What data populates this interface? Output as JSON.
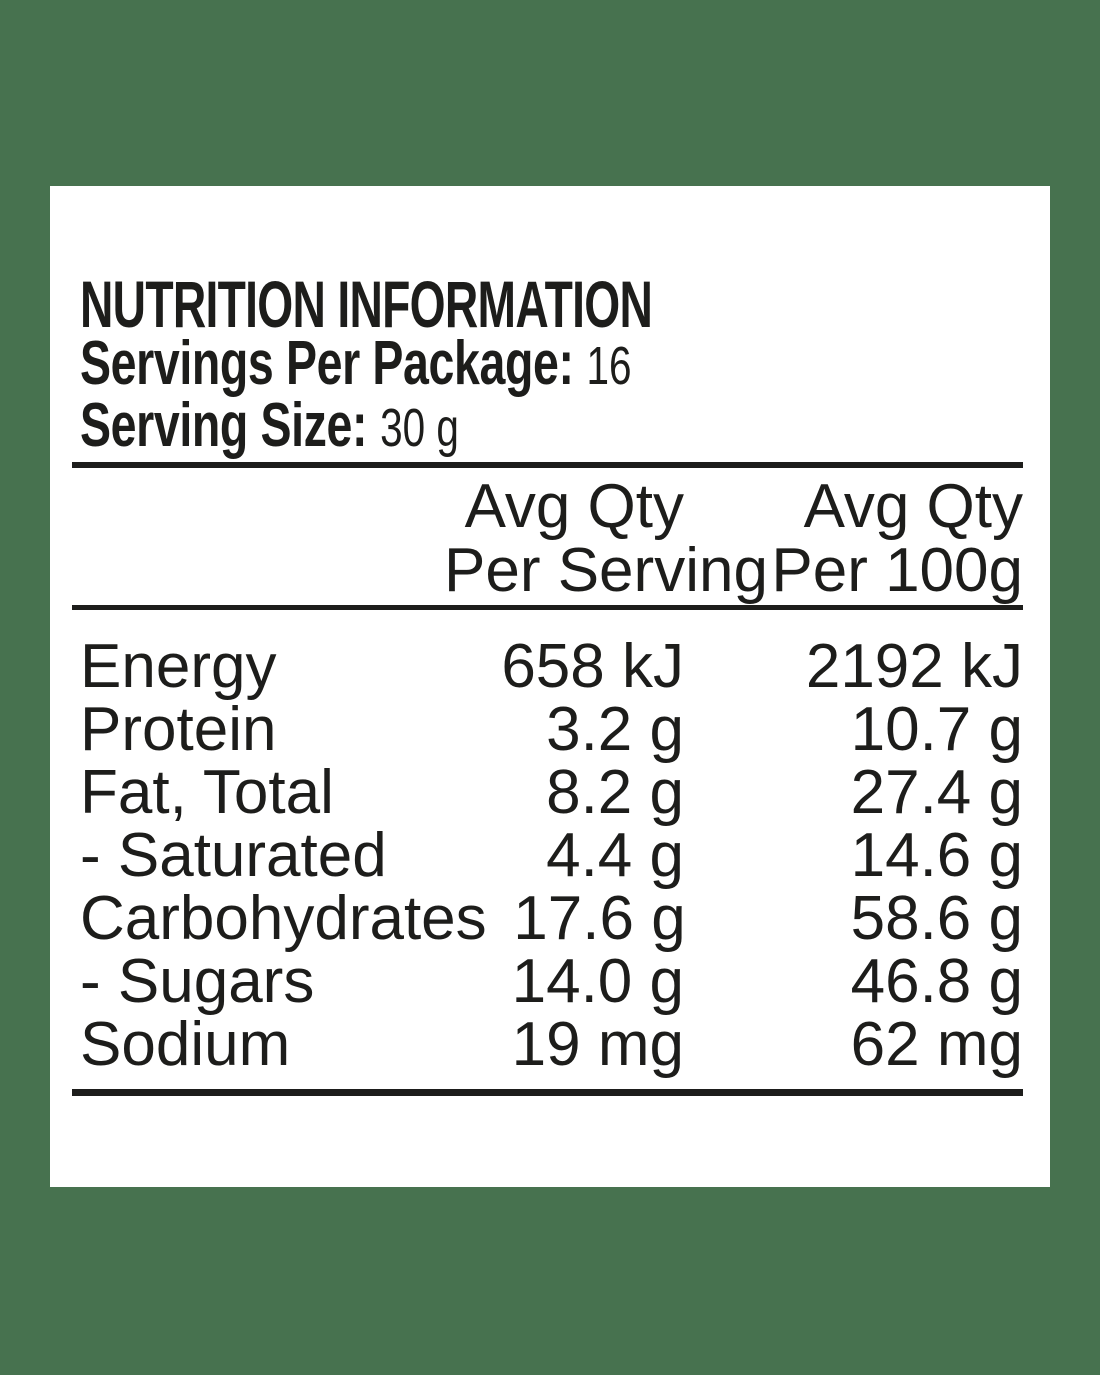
{
  "title": "NUTRITION INFORMATION",
  "servings_per_package": {
    "label": "Servings Per Package:",
    "value": "16"
  },
  "serving_size": {
    "label": "Serving Size:",
    "value": "30 g"
  },
  "columns": {
    "per_serving": {
      "line1": "Avg Qty",
      "line2": "Per Serving"
    },
    "per_100g": {
      "line1": "Avg Qty",
      "line2": "Per 100g"
    }
  },
  "rows": [
    {
      "nutrient": "Energy",
      "per_serving": "658 kJ",
      "per_100g": "2192 kJ"
    },
    {
      "nutrient": "Protein",
      "per_serving": "3.2 g",
      "per_100g": "10.7 g"
    },
    {
      "nutrient": "Fat, Total",
      "per_serving": "8.2 g",
      "per_100g": "27.4 g"
    },
    {
      "nutrient": "- Saturated",
      "per_serving": "4.4 g",
      "per_100g": "14.6 g"
    },
    {
      "nutrient": "Carbohydrates",
      "per_serving": "17.6 g",
      "per_100g": "58.6 g"
    },
    {
      "nutrient": "- Sugars",
      "per_serving": "14.0 g",
      "per_100g": "46.8 g"
    },
    {
      "nutrient": "Sodium",
      "per_serving": "19 mg",
      "per_100g": "62 mg"
    }
  ],
  "colors": {
    "background": "#47724F",
    "panel": "#FFFFFF",
    "text": "#1D1D1B"
  }
}
